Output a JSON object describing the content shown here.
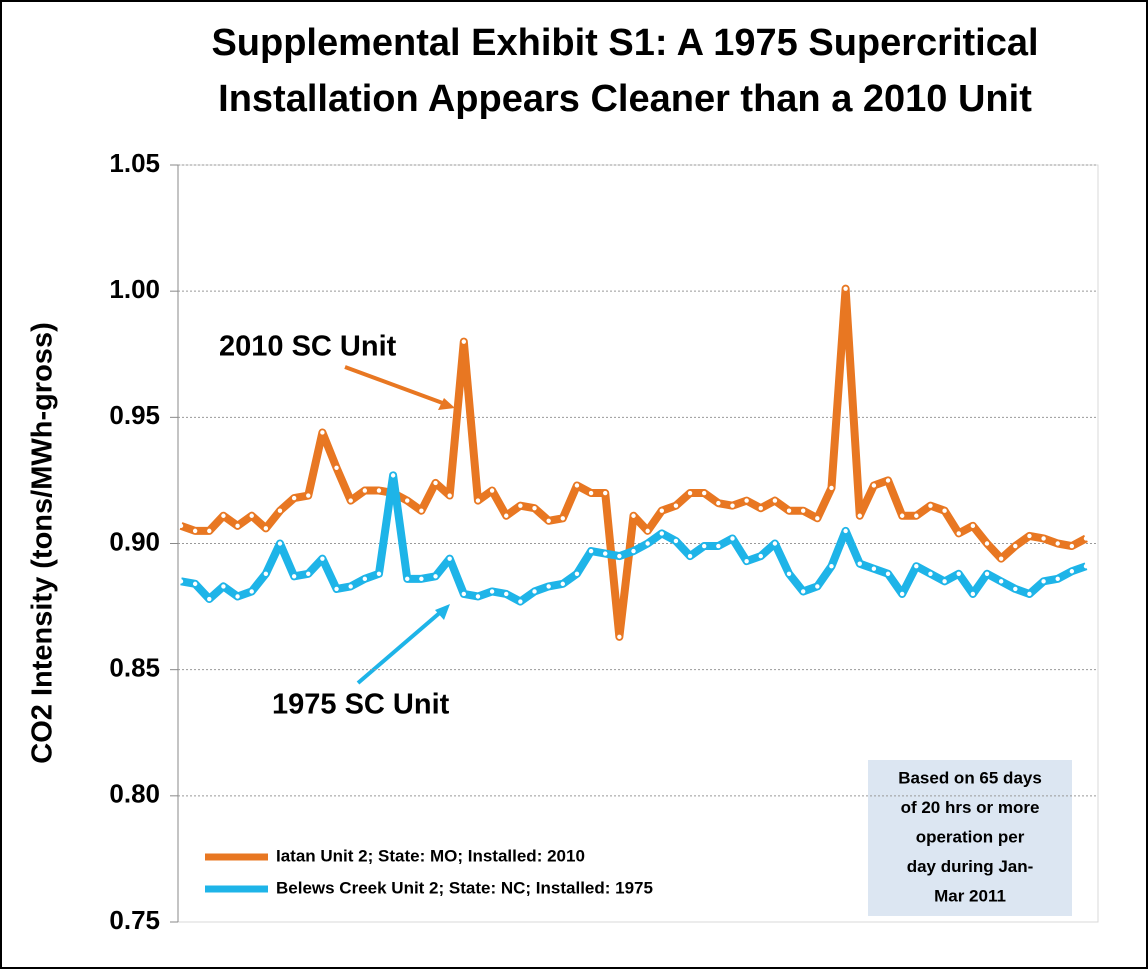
{
  "chart_data": {
    "type": "line",
    "title": [
      "Supplemental Exhibit S1: A 1975 Supercritical",
      "Installation Appears Cleaner than a 2010 Unit"
    ],
    "y_label": "CO2 Intensity (tons/MWh-gross)",
    "ylim": [
      0.75,
      1.05
    ],
    "yticks": [
      0.75,
      {
        "value": 0.8,
        "label": "0.80"
      },
      0.85,
      {
        "value": 0.9,
        "label": "0.90"
      },
      0.95,
      {
        "value": 1.0,
        "label": "1.00"
      },
      1.05
    ],
    "grid": true,
    "legend": "lower left",
    "series": [
      {
        "name": "Iatan Unit 2; State: MO; Installed: 2010",
        "color": "#e87722",
        "values": [
          0.907,
          0.905,
          0.905,
          0.911,
          0.907,
          0.911,
          0.906,
          0.913,
          0.918,
          0.919,
          0.944,
          0.93,
          0.917,
          0.921,
          0.921,
          0.92,
          0.917,
          0.913,
          0.924,
          0.919,
          0.98,
          0.917,
          0.921,
          0.911,
          0.915,
          0.914,
          0.909,
          0.91,
          0.923,
          0.92,
          0.92,
          0.863,
          0.911,
          0.905,
          0.913,
          0.915,
          0.92,
          0.92,
          0.916,
          0.915,
          0.917,
          0.914,
          0.917,
          0.913,
          0.913,
          0.91,
          0.922,
          1.001,
          0.911,
          0.923,
          0.925,
          0.911,
          0.911,
          0.915,
          0.913,
          0.904,
          0.907,
          0.9,
          0.894,
          0.899,
          0.903,
          0.902,
          0.9,
          0.899,
          0.902
        ]
      },
      {
        "name": "Belews Creek Unit 2; State: NC; Installed: 1975",
        "color": "#1eb4e8",
        "values": [
          0.885,
          0.884,
          0.878,
          0.883,
          0.879,
          0.881,
          0.888,
          0.9,
          0.887,
          0.888,
          0.894,
          0.882,
          0.883,
          0.886,
          0.888,
          0.927,
          0.886,
          0.886,
          0.887,
          0.894,
          0.88,
          0.879,
          0.881,
          0.88,
          0.877,
          0.881,
          0.883,
          0.884,
          0.888,
          0.897,
          0.896,
          0.895,
          0.897,
          0.9,
          0.904,
          0.901,
          0.895,
          0.899,
          0.899,
          0.902,
          0.893,
          0.895,
          0.9,
          0.888,
          0.881,
          0.883,
          0.891,
          0.905,
          0.892,
          0.89,
          0.888,
          0.88,
          0.891,
          0.888,
          0.885,
          0.888,
          0.88,
          0.888,
          0.885,
          0.882,
          0.88,
          0.885,
          0.886,
          0.889,
          0.891
        ]
      }
    ],
    "annotations": [
      "2010 SC Unit",
      "1975 SC Unit"
    ],
    "note": [
      "Based on 65 days",
      "of 20 hrs or more",
      "operation per",
      "day during Jan-",
      "Mar 2011"
    ]
  }
}
